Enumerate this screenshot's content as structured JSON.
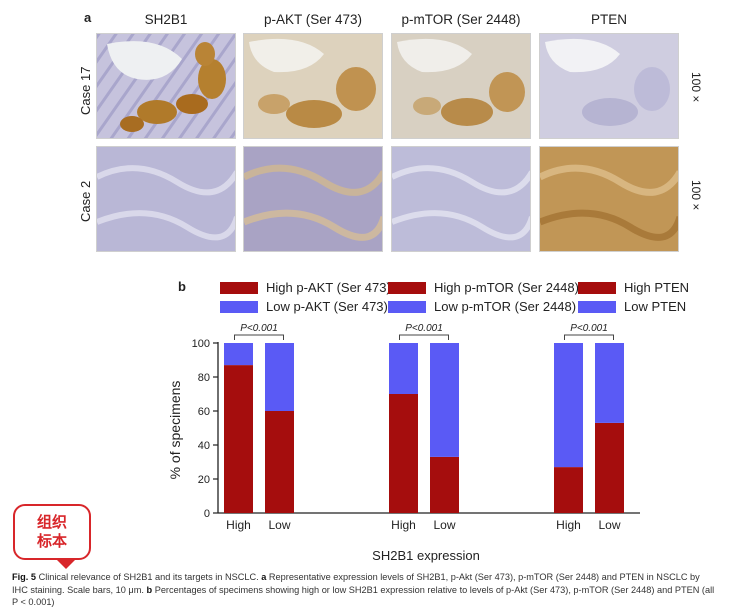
{
  "panel_a": {
    "letter": "a",
    "columns": [
      "SH2B1",
      "p-AKT (Ser 473)",
      "p-mTOR (Ser 2448)",
      "PTEN"
    ],
    "rows": [
      "Case 17",
      "Case 2"
    ],
    "magnification": "100 ×"
  },
  "panel_b": {
    "letter": "b",
    "legend": [
      {
        "high": "High p-AKT (Ser 473)",
        "low": "Low p-AKT (Ser 473)"
      },
      {
        "high": "High p-mTOR (Ser 2448)",
        "low": "Low p-mTOR (Ser 2448)"
      },
      {
        "high": "High PTEN",
        "low": "Low  PTEN"
      }
    ],
    "colors": {
      "high": "#a50d0d",
      "low": "#5a5af5"
    }
  },
  "chart_data": {
    "type": "bar",
    "stacked": true,
    "ylabel": "% of specimens",
    "xlabel": "SH2B1 expression",
    "ylim": [
      0,
      100
    ],
    "yticks": [
      0,
      20,
      40,
      60,
      80,
      100
    ],
    "groups": [
      {
        "categories": [
          "High",
          "Low"
        ],
        "high_values": [
          87,
          60
        ],
        "low_values": [
          13,
          40
        ],
        "pvalue": "P<0.001"
      },
      {
        "categories": [
          "High",
          "Low"
        ],
        "high_values": [
          70,
          33
        ],
        "low_values": [
          30,
          67
        ],
        "pvalue": "P<0.001"
      },
      {
        "categories": [
          "High",
          "Low"
        ],
        "high_values": [
          27,
          53
        ],
        "low_values": [
          73,
          47
        ],
        "pvalue": "P<0.001"
      }
    ]
  },
  "caption": {
    "fig": "Fig. 5",
    "text_1": "Clinical relevance of SH2B1 and its targets in NSCLC.",
    "a": "a",
    "text_2": "Representative expression levels of SH2B1, p-Akt (Ser 473), p-mTOR (Ser 2448) and PTEN in NSCLC by IHC staining. Scale bars, 10 μm.",
    "b": "b",
    "text_3": "Percentages of specimens showing high or low SH2B1 expression relative to levels of p-Akt (Ser 473), p-mTOR (Ser 2448) and PTEN (all P < 0.001)"
  },
  "stamp": {
    "line1": "组织",
    "line2": "标本"
  }
}
